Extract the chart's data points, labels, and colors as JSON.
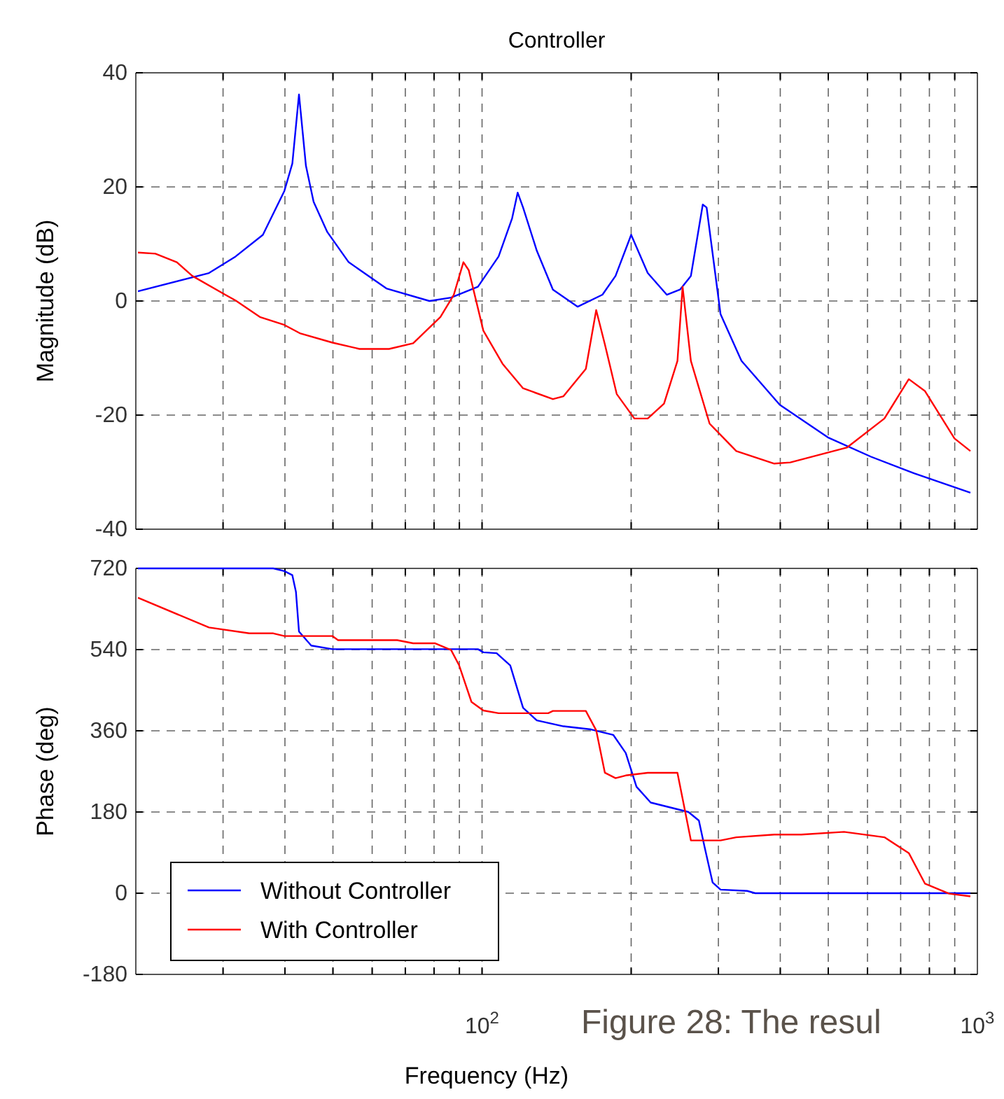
{
  "chart_data": [
    {
      "type": "line",
      "title": "Controller",
      "ylabel": "Magnitude (dB)",
      "log": "x",
      "grid": true,
      "tick_labels": "y",
      "legend": false,
      "xlim": [
        20,
        1000
      ],
      "ylim": [
        -40,
        40
      ],
      "yticks": [
        -40,
        -20,
        0,
        20,
        40
      ],
      "xticks": [
        {
          "value": 20,
          "label": null
        },
        {
          "value": 30,
          "label": null
        },
        {
          "value": 40,
          "label": null
        },
        {
          "value": 50,
          "label": null
        },
        {
          "value": 60,
          "label": null
        },
        {
          "value": 70,
          "label": null
        },
        {
          "value": 80,
          "label": null
        },
        {
          "value": 90,
          "label": null
        },
        {
          "value": 100,
          "label": null
        },
        {
          "value": 200,
          "label": null
        },
        {
          "value": 300,
          "label": null
        },
        {
          "value": 400,
          "label": null
        },
        {
          "value": 500,
          "label": null
        },
        {
          "value": 600,
          "label": null
        },
        {
          "value": 700,
          "label": null
        },
        {
          "value": 800,
          "label": null
        },
        {
          "value": 900,
          "label": null
        },
        {
          "value": 1000,
          "label": null
        }
      ],
      "series": [
        {
          "color": "#0000ff",
          "x": [
            20.2,
            28.1,
            31.8,
            36.1,
            39.9,
            41.4,
            42.7,
            44.1,
            45.7,
            48.7,
            53.8,
            64.1,
            78.3,
            86.6,
            98.1,
            108,
            115,
            118,
            121,
            129,
            139,
            156,
            175,
            186,
            200,
            216,
            236,
            251,
            264,
            279,
            284,
            303,
            334,
            399,
            499,
            610,
            745,
            968
          ],
          "values": [
            1.7,
            4.9,
            7.8,
            11.6,
            19.3,
            24.1,
            36.2,
            23.7,
            17.4,
            12.1,
            6.8,
            2.2,
            0,
            0.6,
            2.5,
            7.8,
            14.5,
            19,
            16.4,
            8.8,
            2,
            -1,
            1.1,
            4.4,
            11.6,
            4.9,
            1.1,
            2,
            4.4,
            16.9,
            16.4,
            -2.3,
            -10.5,
            -18.2,
            -23.9,
            -27.3,
            -30.2,
            -33.6
          ]
        },
        {
          "color": "#ff0000",
          "x": [
            20.2,
            21.9,
            24.2,
            26,
            30.3,
            31.8,
            35.6,
            39.9,
            43,
            49.9,
            56.6,
            64.9,
            72.6,
            82.4,
            87.7,
            91.7,
            94,
            100.6,
            110,
            121,
            139,
            146,
            162,
            170,
            177,
            187,
            203,
            216,
            233,
            248,
            254,
            264,
            288,
            326,
            389,
            419,
            545,
            649,
            727,
            784,
            899,
            968
          ],
          "values": [
            8.5,
            8.3,
            6.8,
            4.4,
            1.1,
            0.1,
            -2.8,
            -4.2,
            -5.7,
            -7.3,
            -8.4,
            -8.4,
            -7.4,
            -2.8,
            1.1,
            6.8,
            5.4,
            -5.2,
            -11,
            -15.3,
            -17.2,
            -16.7,
            -11.9,
            -1.6,
            -7.6,
            -16.3,
            -20.6,
            -20.6,
            -18,
            -10.5,
            2.5,
            -10.5,
            -21.5,
            -26.3,
            -28.5,
            -28.3,
            -25.7,
            -20.6,
            -13.7,
            -15.8,
            -24.1,
            -26.3
          ]
        }
      ]
    },
    {
      "type": "line",
      "ylabel": "Phase (deg)",
      "xlabel": "Frequency  (Hz)",
      "log": "x",
      "grid": true,
      "legend": "bottom left",
      "xlim": [
        20,
        1000
      ],
      "ylim": [
        -180,
        720
      ],
      "yticks": [
        -180,
        0,
        180,
        360,
        540,
        720
      ],
      "xticks": [
        {
          "value": 20,
          "label": null
        },
        {
          "value": 30,
          "label": null
        },
        {
          "value": 40,
          "label": null
        },
        {
          "value": 50,
          "label": null
        },
        {
          "value": 60,
          "label": null
        },
        {
          "value": 70,
          "label": null
        },
        {
          "value": 80,
          "label": null
        },
        {
          "value": 90,
          "label": null
        },
        {
          "value": 100,
          "label": "10$^{2}$"
        },
        {
          "value": 200,
          "label": null
        },
        {
          "value": 300,
          "label": null
        },
        {
          "value": 400,
          "label": null
        },
        {
          "value": 500,
          "label": null
        },
        {
          "value": 600,
          "label": null
        },
        {
          "value": 700,
          "label": null
        },
        {
          "value": 800,
          "label": null
        },
        {
          "value": 900,
          "label": null
        },
        {
          "value": 1000,
          "label": "10$^{3}$"
        }
      ],
      "annotations": [
        "Figure 28: The resul"
      ],
      "series": [
        {
          "name": "Without Controller",
          "color": "#0000ff",
          "x": [
            20.2,
            37.9,
            39.9,
            41.4,
            42.1,
            42.7,
            45.2,
            49.9,
            67.4,
            98.1,
            100.6,
            107,
            114,
            121,
            129,
            146,
            166,
            184,
            195,
            205,
            219,
            236,
            261,
            274,
            281,
            292,
            303,
            343,
            356,
            968
          ],
          "values": [
            720,
            720,
            714,
            705,
            668,
            580,
            549,
            541,
            541,
            541,
            534,
            532,
            505,
            411,
            383,
            370,
            363,
            351,
            311,
            236,
            201,
            192,
            180,
            161,
            105,
            24,
            8,
            5,
            0,
            0
          ]
        },
        {
          "name": "With Controller",
          "color": "#ff0000",
          "x": [
            20.2,
            28.1,
            33.9,
            37.9,
            39.9,
            49.9,
            51.2,
            67.4,
            72.6,
            80.3,
            86.6,
            89.9,
            95.2,
            100.6,
            108,
            136,
            139,
            162,
            170,
            177,
            186,
            195,
            216,
            248,
            264,
            303,
            326,
            389,
            441,
            538,
            649,
            727,
            784,
            877,
            968
          ],
          "values": [
            655,
            589,
            576,
            576,
            570,
            570,
            561,
            561,
            554,
            554,
            539,
            505,
            424,
            405,
            399,
            399,
            404,
            404,
            361,
            267,
            255,
            261,
            267,
            267,
            117,
            117,
            124,
            130,
            130,
            136,
            124,
            89,
            21,
            -1,
            -7
          ]
        }
      ]
    }
  ]
}
